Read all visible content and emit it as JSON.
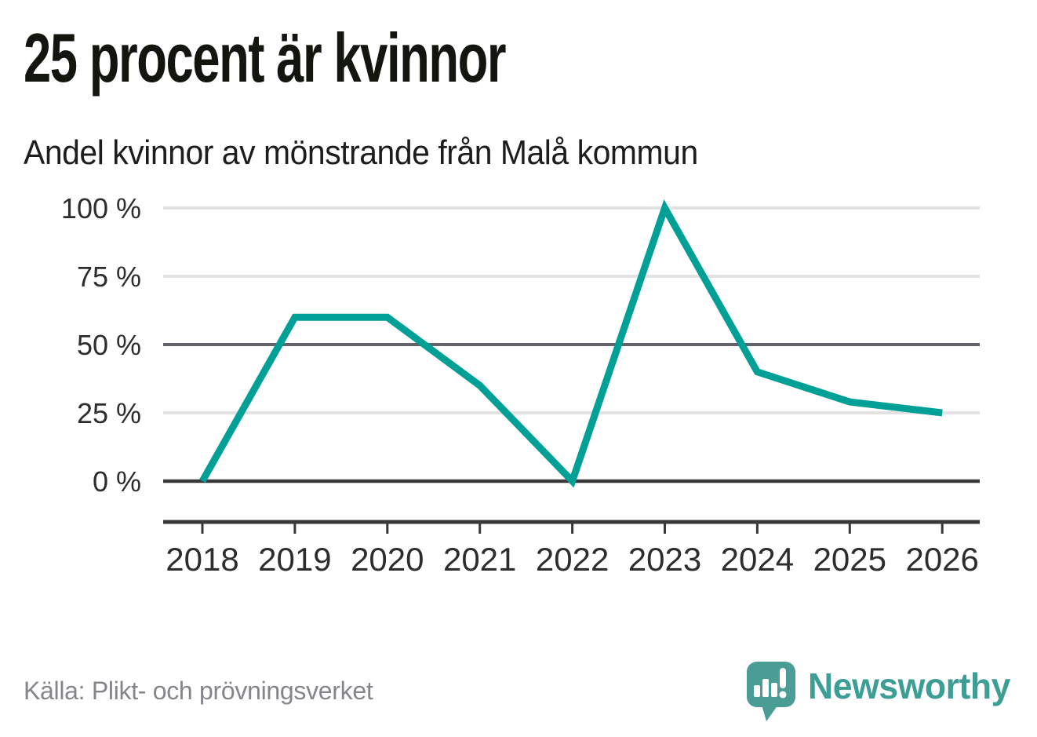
{
  "header": {
    "title": "25 procent är kvinnor",
    "subtitle": "Andel kvinnor av mönstrande från Malå kommun"
  },
  "footer": {
    "source": "Källa: Plikt- och prövningsverket",
    "brand": "Newsworthy"
  },
  "chart_data": {
    "type": "line",
    "title": "25 procent är kvinnor",
    "subtitle": "Andel kvinnor av mönstrande från Malå kommun",
    "categories": [
      "2018",
      "2019",
      "2020",
      "2021",
      "2022",
      "2023",
      "2024",
      "2025",
      "2026"
    ],
    "series": [
      {
        "name": "Andel kvinnor av mönstrande",
        "values": [
          0,
          60,
          60,
          35,
          0,
          100,
          40,
          29,
          25
        ]
      }
    ],
    "unit": "%",
    "ylim": [
      0,
      100
    ],
    "yticks": [
      0,
      25,
      50,
      75,
      100
    ],
    "ytick_labels": [
      "0 %",
      "25 %",
      "50 %",
      "75 %",
      "100 %"
    ],
    "grid": true,
    "emphasized_gridlines": [
      0,
      50
    ],
    "legend": "none",
    "line_color": "#00a096"
  },
  "colors": {
    "line": "#00a096",
    "grid_light": "#e2e2e2",
    "grid_mid": "#63636b",
    "grid_zero": "#3a3a3a",
    "axis": "#383838",
    "tick_label": "#2d2d2d",
    "brand_teal": "#3d9e96",
    "icon_teal": "#4a9d95",
    "icon_marks": "#ffffff"
  }
}
